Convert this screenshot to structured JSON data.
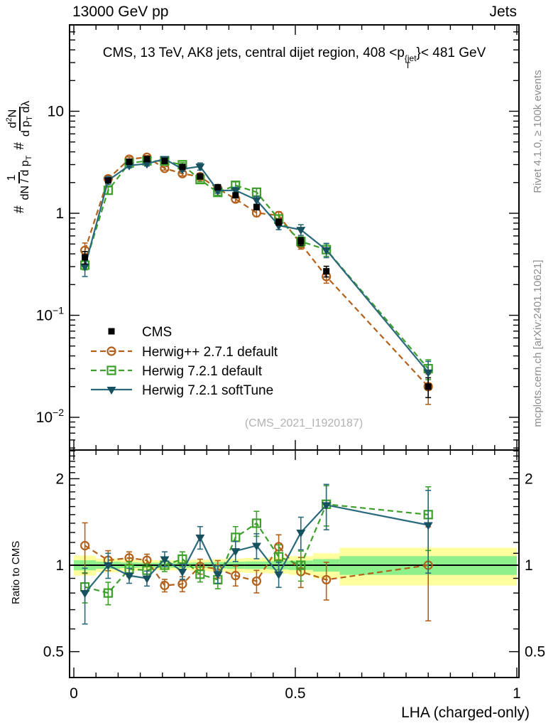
{
  "header": {
    "left": "13000 GeV pp",
    "right": "Jets"
  },
  "title": {
    "pre": "CMS, 13 TeV, AK8 jets, central dijet region, 408 <p",
    "sup": "{jet",
    "sub": "T",
    "post": "}< 481 GeV"
  },
  "ylabel": {
    "hash1": "#",
    "f1num": "1",
    "f1den": "dN / d p",
    "f1den_sub": "T",
    "hash2": "#",
    "f2num_a": "d",
    "f2num_sup": "2",
    "f2num_b": "N",
    "f2den_a": "d p",
    "f2den_sub": "T",
    "f2den_b": " dλ"
  },
  "ratio_axis_label": "Ratio to CMS",
  "xlabel": "LHA (charged-only)",
  "watermark": "(CMS_2021_I1920187)",
  "right_margin": {
    "top": "Rivet 4.1.0, ≥ 100k events",
    "bottom": "mcplots.cern.ch [arXiv:2401.10621]"
  },
  "legend": [
    {
      "label": "CMS",
      "series": 0
    },
    {
      "label": "Herwig++ 2.7.1 default",
      "series": 1
    },
    {
      "label": "Herwig 7.2.1 default",
      "series": 2
    },
    {
      "label": "Herwig 7.2.1 softTune",
      "series": 3
    }
  ],
  "colors": {
    "cms": "#000000",
    "herwigpp": "#b2611c",
    "herwig7_default": "#3da02a",
    "herwig7_soft_line": "#2b6a7c",
    "herwig7_soft_marker": "#17505f",
    "band_yellow": "#ffff9e",
    "band_green": "#8df08b",
    "gray_text": "#8e8e8e"
  },
  "chart_data": {
    "type": "line",
    "title": "CMS, 13 TeV, AK8 jets, central dijet region, 408 < pT(jet) < 481 GeV",
    "xlabel": "LHA (charged-only)",
    "ylabel": "# 1/(dN/dpT) d2N/(dpT dlambda)",
    "ratio_ylabel": "Ratio to CMS",
    "x_range": [
      0,
      1
    ],
    "y_scale": "log",
    "y_range_main": [
      0.0048,
      70
    ],
    "y_range_ratio": [
      0.41,
      2.52
    ],
    "grid": false,
    "legend_position": "inside-left",
    "bin_edges": [
      0,
      0.05,
      0.105,
      0.145,
      0.185,
      0.225,
      0.265,
      0.305,
      0.345,
      0.385,
      0.44,
      0.485,
      0.54,
      0.6,
      1.0
    ],
    "bin_centers": [
      0.025,
      0.0775,
      0.125,
      0.165,
      0.205,
      0.245,
      0.285,
      0.325,
      0.365,
      0.4125,
      0.4625,
      0.5125,
      0.57,
      0.8
    ],
    "x_ticks": {
      "minor_step": 0.05,
      "majors": [
        {
          "v": 0,
          "label": "0"
        },
        {
          "v": 0.5,
          "label": "0.5"
        },
        {
          "v": 1,
          "label": "1"
        }
      ]
    },
    "y_ticks_main": {
      "majors": [
        {
          "v": 10,
          "base": "10",
          "exp": ""
        },
        {
          "v": 1,
          "base": "1",
          "exp": ""
        },
        {
          "v": 0.1,
          "base": "10",
          "exp": "−1"
        },
        {
          "v": 0.01,
          "base": "10",
          "exp": "−2"
        }
      ]
    },
    "y_ticks_ratio": {
      "majors": [
        {
          "v": 2,
          "label": "2"
        },
        {
          "v": 1,
          "label": "1"
        },
        {
          "v": 0.5,
          "label": "0.5"
        }
      ],
      "minors": [
        0.6,
        0.7,
        0.8,
        0.9,
        1.1,
        1.2,
        1.3,
        1.4,
        1.5,
        1.6,
        1.7,
        1.8,
        1.9,
        2.1,
        2.2,
        2.3,
        2.4,
        2.5
      ]
    },
    "reference_line": 1,
    "bands": {
      "yellow_halfwidth": [
        0.08,
        0.055,
        0.045,
        0.04,
        0.04,
        0.04,
        0.045,
        0.05,
        0.055,
        0.06,
        0.065,
        0.075,
        0.1,
        0.15
      ],
      "green_halfwidth": [
        0.04,
        0.028,
        0.022,
        0.02,
        0.02,
        0.02,
        0.022,
        0.025,
        0.028,
        0.03,
        0.033,
        0.038,
        0.05,
        0.075
      ]
    },
    "series": [
      {
        "name": "CMS",
        "color": "#000000",
        "marker": "square-filled",
        "line": "none",
        "values": [
          0.37,
          2.1,
          3.2,
          3.4,
          3.25,
          2.85,
          2.3,
          1.8,
          1.5,
          1.15,
          0.82,
          0.53,
          0.27,
          0.02
        ],
        "err": [
          0.14,
          0.05,
          0.04,
          0.04,
          0.04,
          0.04,
          0.04,
          0.05,
          0.05,
          0.06,
          0.07,
          0.09,
          0.12,
          0.22
        ]
      },
      {
        "name": "Herwig++ 2.7.1 default",
        "color": "#b2611c",
        "marker": "circle-open",
        "line": "dashed",
        "values": [
          0.433,
          2.18,
          3.39,
          3.54,
          2.76,
          2.45,
          2.28,
          1.75,
          1.38,
          1.01,
          0.95,
          0.5,
          0.24,
          0.02
        ],
        "err": [
          0.18,
          0.07,
          0.05,
          0.04,
          0.04,
          0.05,
          0.05,
          0.06,
          0.07,
          0.08,
          0.09,
          0.11,
          0.14,
          0.33
        ],
        "ratio": [
          1.17,
          1.04,
          1.06,
          1.04,
          0.85,
          0.86,
          0.99,
          0.97,
          0.92,
          0.88,
          1.16,
          0.95,
          0.89,
          1.0
        ],
        "ratio_err": [
          0.2,
          0.08,
          0.05,
          0.05,
          0.05,
          0.06,
          0.06,
          0.07,
          0.08,
          0.09,
          0.1,
          0.12,
          0.15,
          0.36
        ]
      },
      {
        "name": "Herwig 7.2.1 default",
        "color": "#3da02a",
        "marker": "square-open",
        "line": "dashed",
        "values": [
          0.31,
          1.68,
          3.1,
          3.26,
          3.25,
          2.99,
          2.14,
          1.6,
          1.88,
          1.61,
          0.88,
          0.53,
          0.44,
          0.03
        ],
        "err": [
          0.1,
          0.08,
          0.05,
          0.04,
          0.04,
          0.05,
          0.05,
          0.06,
          0.08,
          0.09,
          0.09,
          0.11,
          0.14,
          0.22
        ],
        "ratio": [
          0.84,
          0.8,
          0.97,
          0.96,
          1.0,
          1.05,
          0.93,
          0.89,
          1.25,
          1.4,
          1.07,
          1.0,
          1.63,
          1.5
        ],
        "ratio_err": [
          0.12,
          0.09,
          0.06,
          0.05,
          0.05,
          0.06,
          0.06,
          0.07,
          0.09,
          0.1,
          0.1,
          0.12,
          0.16,
          0.25
        ]
      },
      {
        "name": "Herwig 7.2.1 softTune",
        "color": "#2b6a7c",
        "marker": "triangle-filled",
        "marker_color": "#17505f",
        "line": "solid",
        "values": [
          0.3,
          2.1,
          2.94,
          3.06,
          3.41,
          2.71,
          2.88,
          1.67,
          1.68,
          1.35,
          0.76,
          0.69,
          0.437,
          0.0276
        ],
        "err": [
          0.2,
          0.09,
          0.05,
          0.05,
          0.05,
          0.05,
          0.08,
          0.06,
          0.07,
          0.09,
          0.09,
          0.12,
          0.16,
          0.28
        ],
        "ratio": [
          0.8,
          1.0,
          0.92,
          0.9,
          1.05,
          0.95,
          1.25,
          0.93,
          1.12,
          1.17,
          0.93,
          1.3,
          1.62,
          1.38
        ],
        "ratio_err": [
          0.22,
          0.1,
          0.06,
          0.06,
          0.06,
          0.06,
          0.09,
          0.07,
          0.08,
          0.1,
          0.1,
          0.13,
          0.18,
          0.32
        ]
      }
    ]
  }
}
